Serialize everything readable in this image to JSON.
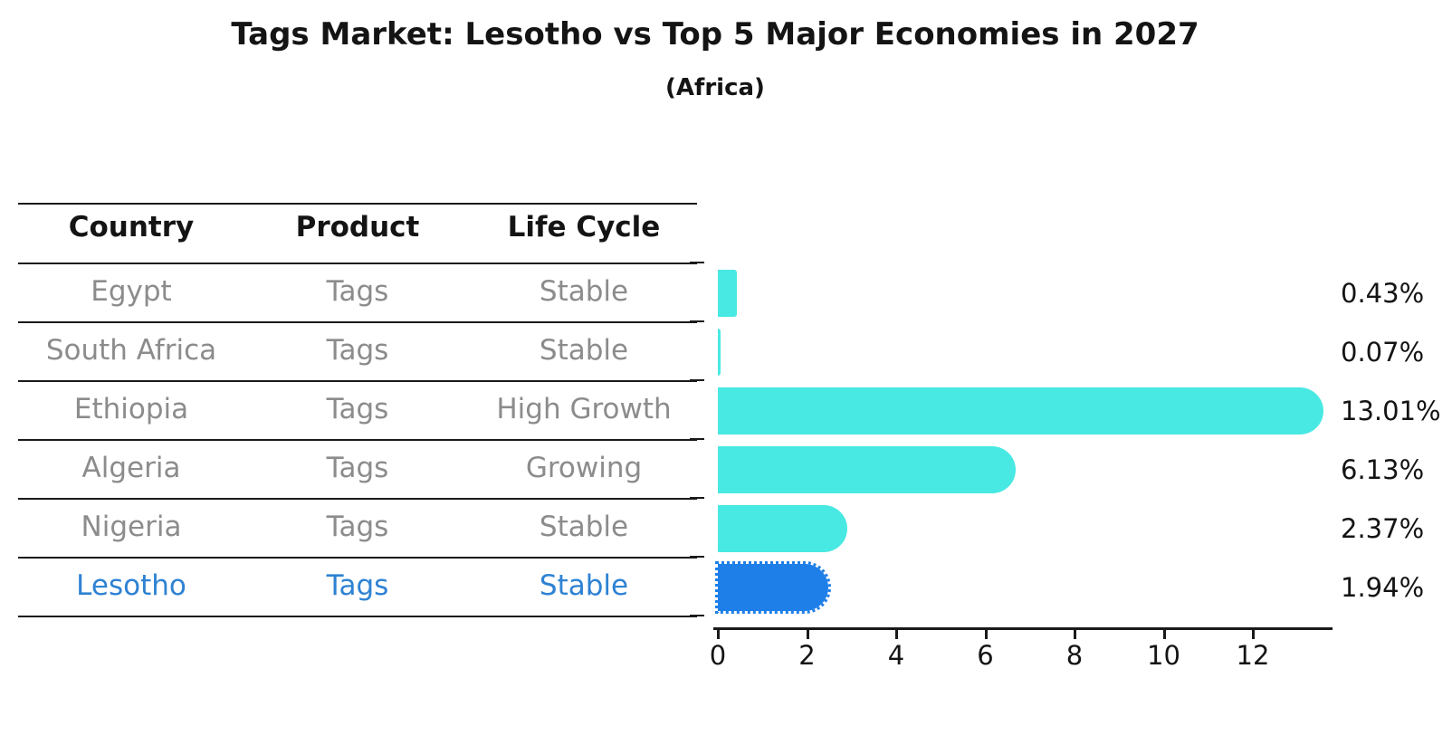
{
  "title": "Tags Market: Lesotho vs Top 5 Major Economies in 2027",
  "subtitle": "(Africa)",
  "table": {
    "headers": [
      "Country",
      "Product",
      "Life Cycle"
    ],
    "rows": [
      {
        "country": "Egypt",
        "product": "Tags",
        "life_cycle": "Stable",
        "highlight": false
      },
      {
        "country": "South Africa",
        "product": "Tags",
        "life_cycle": "Stable",
        "highlight": false
      },
      {
        "country": "Ethiopia",
        "product": "Tags",
        "life_cycle": "High Growth",
        "highlight": false
      },
      {
        "country": "Algeria",
        "product": "Tags",
        "life_cycle": "Growing",
        "highlight": false
      },
      {
        "country": "Nigeria",
        "product": "Tags",
        "life_cycle": "Stable",
        "highlight": true,
        "highlight_note": ""
      },
      {
        "country": "Lesotho",
        "product": "Tags",
        "life_cycle": "Stable",
        "highlight": true
      }
    ]
  },
  "chart_data": {
    "type": "bar",
    "orientation": "horizontal",
    "title": "Tags Market: Lesotho vs Top 5 Major Economies in 2027",
    "subtitle": "(Africa)",
    "categories": [
      "Egypt",
      "South Africa",
      "Ethiopia",
      "Algeria",
      "Nigeria",
      "Lesotho"
    ],
    "values": [
      0.43,
      0.07,
      13.01,
      6.13,
      2.37,
      1.94
    ],
    "value_labels": [
      "0.43%",
      "0.07%",
      "13.01%",
      "6.13%",
      "2.37%",
      "1.94%"
    ],
    "highlight_category": "Lesotho",
    "x_ticks": [
      0,
      2,
      4,
      6,
      8,
      10,
      12
    ],
    "xlim": [
      0,
      13.75
    ],
    "grid": false,
    "legend": "none",
    "colors": {
      "bar": "#48E9E2",
      "highlight_bar": "#1F7FE8",
      "highlight_text": "#2E82D3",
      "row_text": "#8C8C8C",
      "header_text": "#141414",
      "value_text": "#141414",
      "axis": "#1a1a1a"
    }
  }
}
